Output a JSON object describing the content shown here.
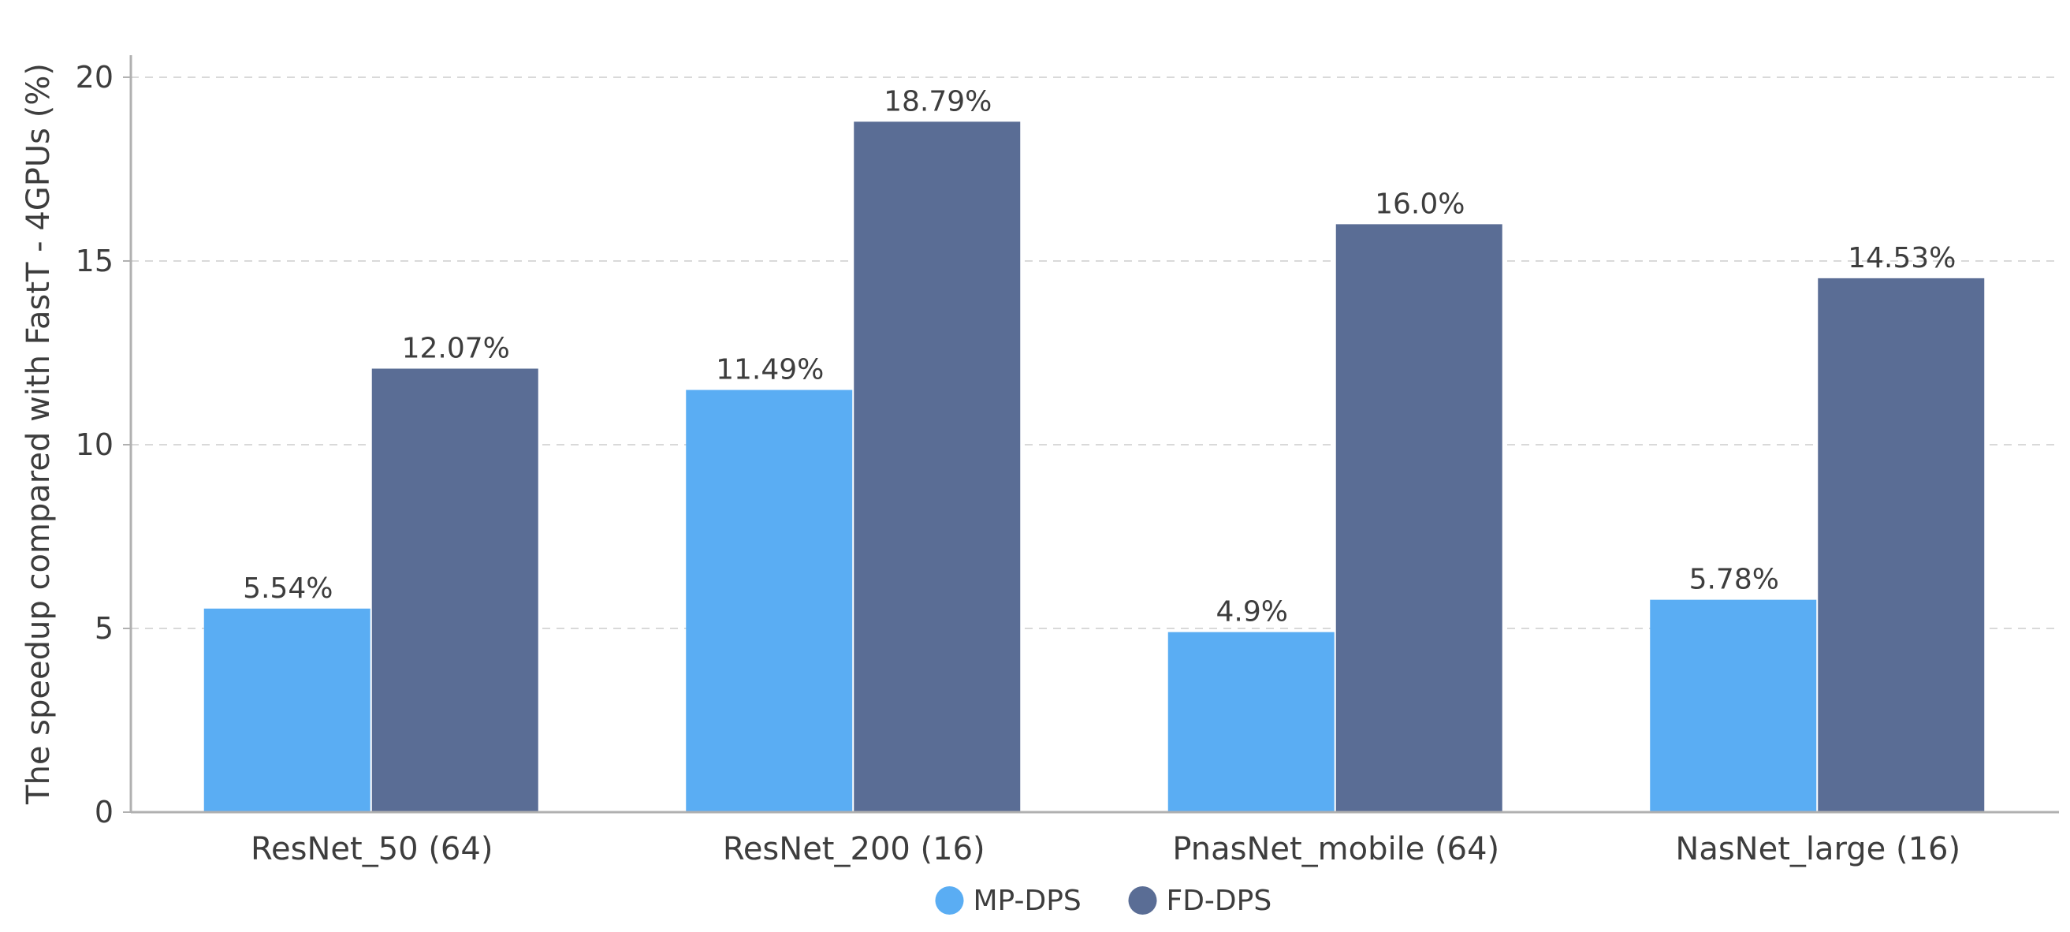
{
  "chart_data": {
    "type": "bar",
    "categories": [
      "ResNet_50 (64)",
      "ResNet_200 (16)",
      "PnasNet_mobile (64)",
      "NasNet_large (16)"
    ],
    "series": [
      {
        "name": "MP-DPS",
        "values": [
          5.54,
          11.49,
          4.9,
          5.78
        ],
        "labels": [
          "5.54%",
          "11.49%",
          "4.9%",
          "5.78%"
        ],
        "color": "#5aadf3"
      },
      {
        "name": "FD-DPS",
        "values": [
          12.07,
          18.79,
          16.0,
          14.53
        ],
        "labels": [
          "12.07%",
          "18.79%",
          "16.0%",
          "14.53%"
        ],
        "color": "#5a6d95"
      }
    ],
    "ylabel": "The speedup compared with FastT - 4GPUs (%)",
    "xlabel": "",
    "ylim": [
      0,
      20.6
    ],
    "yticks": [
      0,
      5,
      10,
      15,
      20
    ],
    "grid": true,
    "legend_position": "bottom-center"
  }
}
